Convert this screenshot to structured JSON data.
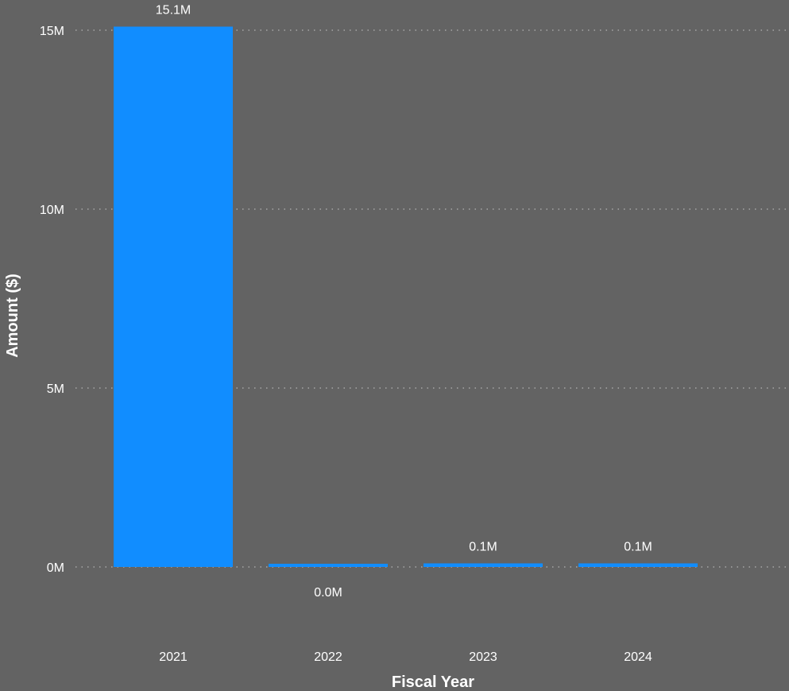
{
  "colors": {
    "background": "#636363",
    "bar": "#118DFF",
    "text": "#FFFFFF",
    "grid": "#B5B5B5"
  },
  "chart_data": {
    "type": "bar",
    "categories": [
      "2021",
      "2022",
      "2023",
      "2024"
    ],
    "values": [
      15100000,
      0,
      100000,
      100000
    ],
    "data_labels": [
      "15.1M",
      "0.0M",
      "0.1M",
      "0.1M"
    ],
    "xlabel": "Fiscal Year",
    "ylabel": "Amount ($)",
    "ylim": [
      0,
      15000000
    ],
    "y_ticks": [
      {
        "value": 0,
        "label": "0M"
      },
      {
        "value": 5000000,
        "label": "5M"
      },
      {
        "value": 10000000,
        "label": "10M"
      },
      {
        "value": 15000000,
        "label": "15M"
      }
    ],
    "grid": true,
    "grid_style": "dotted",
    "legend": "none"
  }
}
